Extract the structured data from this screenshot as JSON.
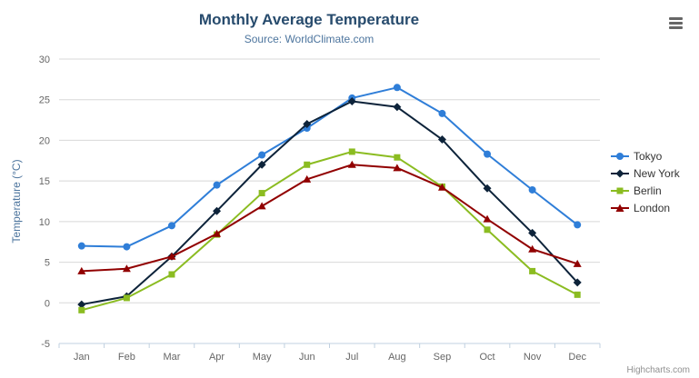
{
  "header": {
    "title": "Monthly Average Temperature",
    "subtitle": "Source: WorldClimate.com"
  },
  "credits": "Highcharts.com",
  "export_menu": {
    "icon": "hamburger-icon"
  },
  "chart_data": {
    "type": "line",
    "title": "Monthly Average Temperature",
    "subtitle": "Source: WorldClimate.com",
    "categories": [
      "Jan",
      "Feb",
      "Mar",
      "Apr",
      "May",
      "Jun",
      "Jul",
      "Aug",
      "Sep",
      "Oct",
      "Nov",
      "Dec"
    ],
    "series": [
      {
        "name": "Tokyo",
        "color": "#2f7ed8",
        "marker": "circle",
        "values": [
          7.0,
          6.9,
          9.5,
          14.5,
          18.2,
          21.5,
          25.2,
          26.5,
          23.3,
          18.3,
          13.9,
          9.6
        ]
      },
      {
        "name": "New York",
        "color": "#0d233a",
        "marker": "diamond",
        "values": [
          -0.2,
          0.8,
          5.7,
          11.3,
          17.0,
          22.0,
          24.8,
          24.1,
          20.1,
          14.1,
          8.6,
          2.5
        ]
      },
      {
        "name": "Berlin",
        "color": "#8bbc21",
        "marker": "square",
        "values": [
          -0.9,
          0.6,
          3.5,
          8.4,
          13.5,
          17.0,
          18.6,
          17.9,
          14.3,
          9.0,
          3.9,
          1.0
        ]
      },
      {
        "name": "London",
        "color": "#910000",
        "marker": "triangle",
        "values": [
          3.9,
          4.2,
          5.7,
          8.5,
          11.9,
          15.2,
          17.0,
          16.6,
          14.2,
          10.3,
          6.6,
          4.8
        ]
      }
    ],
    "xlabel": "",
    "ylabel": "Temperature (°C)",
    "ylim": [
      -5,
      30
    ],
    "ytick_interval": 5,
    "grid": true,
    "legend_position": "right-middle",
    "colors": {
      "title": "#274b6d",
      "subtitle": "#4d759e",
      "axis_title": "#4d759e",
      "tick_label": "#666666",
      "gridline": "#d8d8d8",
      "axis_line": "#c0d0e0"
    }
  }
}
